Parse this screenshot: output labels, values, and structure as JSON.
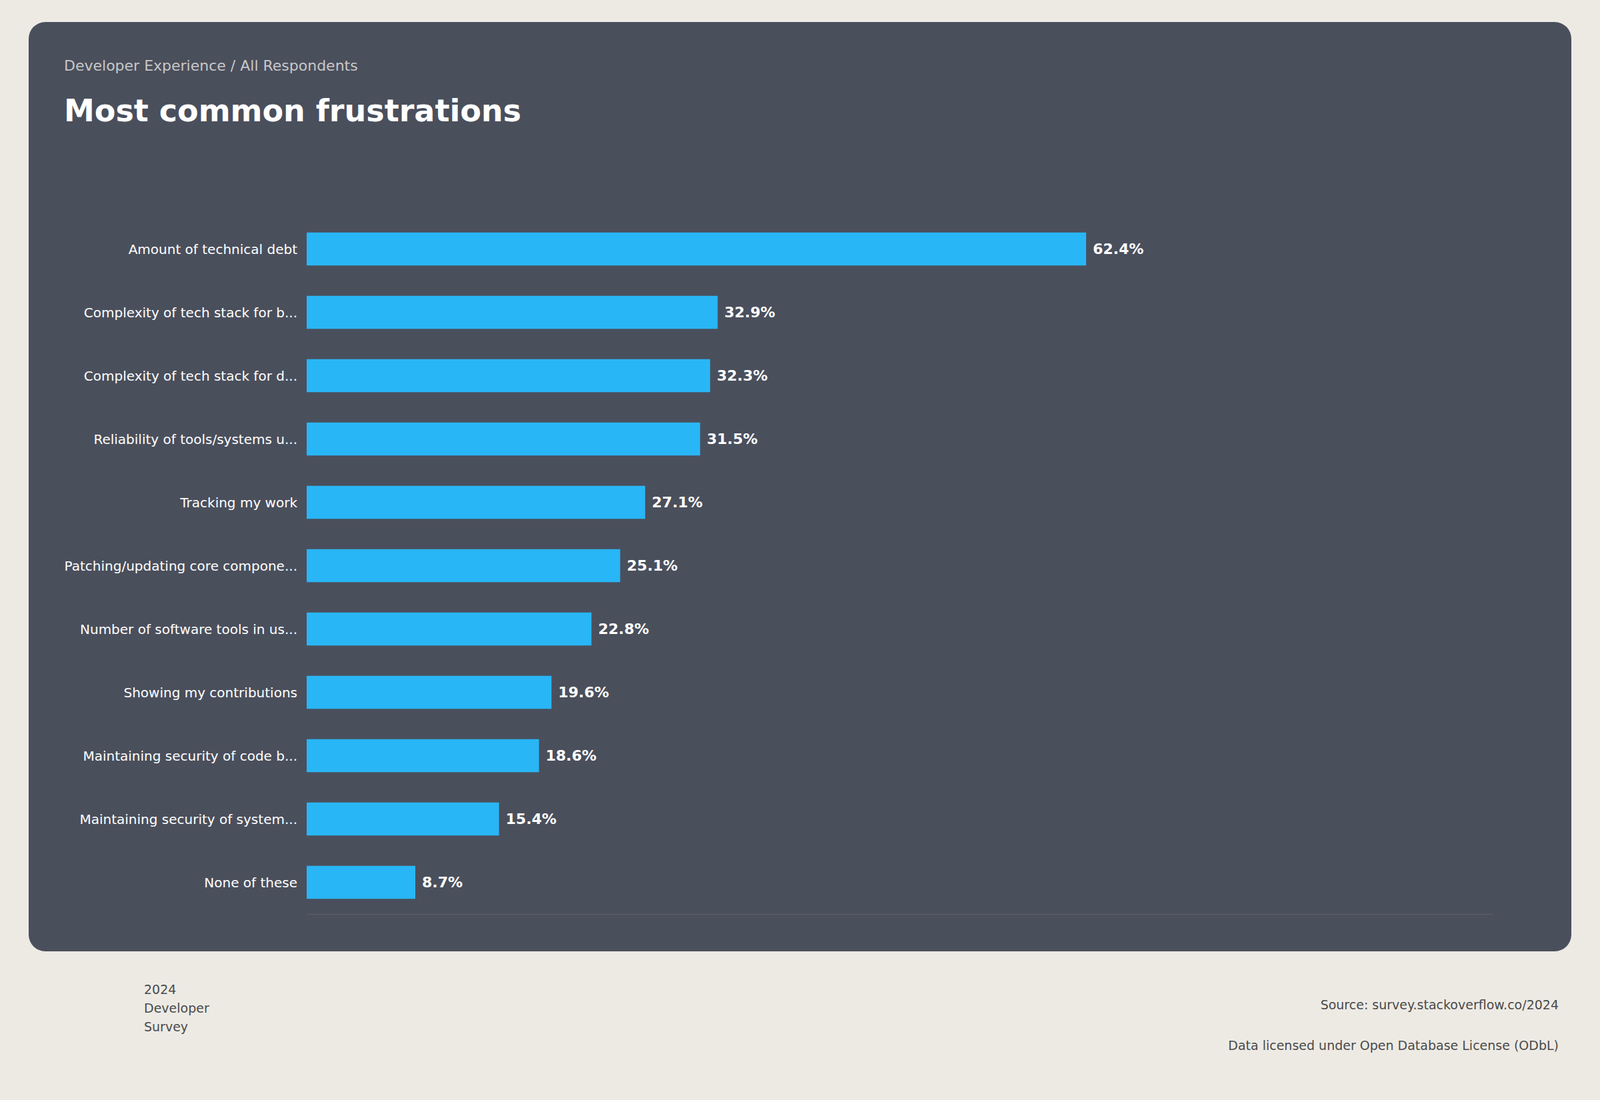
{
  "chart_data": {
    "type": "bar",
    "orientation": "horizontal",
    "subtitle": "Developer Experience / All Respondents",
    "title": "Most common frustrations",
    "categories": [
      "Amount of technical debt",
      "Complexity of tech stack for b...",
      "Complexity of tech stack for d...",
      "Reliability of tools/systems u...",
      "Tracking my work",
      "Patching/updating core compone...",
      "Number of software tools in us...",
      "Showing my contributions",
      "Maintaining security of code b...",
      "Maintaining security of system...",
      "None of these"
    ],
    "values": [
      62.4,
      32.9,
      32.3,
      31.5,
      27.1,
      25.1,
      22.8,
      19.6,
      18.6,
      15.4,
      8.7
    ],
    "value_labels": [
      "62.4%",
      "32.9%",
      "32.3%",
      "31.5%",
      "27.1%",
      "25.1%",
      "22.8%",
      "19.6%",
      "18.6%",
      "15.4%",
      "8.7%"
    ],
    "data_labels": true,
    "color": "#29B6F6",
    "xlim": [
      0,
      95
    ],
    "tick_labels": "y",
    "grid": false,
    "annotations": [
      "Source: survey.stackoverflow.co/2024",
      "Data licensed under Open Database License (ODbL)",
      "2024\nDeveloper\nSurvey"
    ]
  }
}
